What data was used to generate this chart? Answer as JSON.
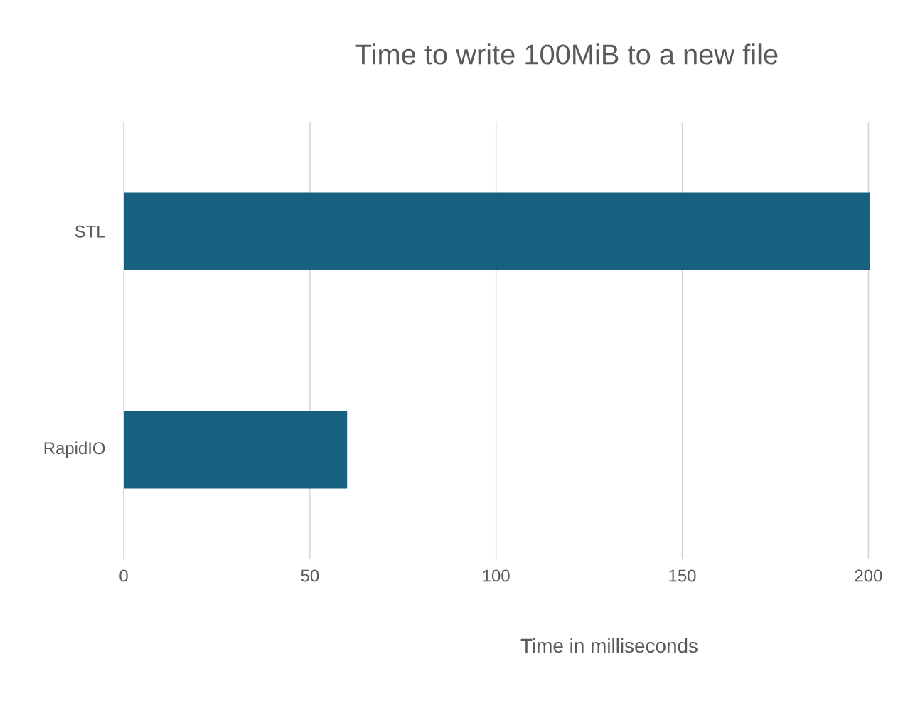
{
  "chart_data": {
    "type": "bar",
    "orientation": "horizontal",
    "title": "Time to write 100MiB to a new file",
    "xlabel": "Time in milliseconds",
    "categories": [
      "STL",
      "RapidIO"
    ],
    "values": [
      200.5,
      60
    ],
    "color": "#17607f",
    "xlim": [
      0,
      200.5
    ],
    "xticks": [
      0,
      50,
      100,
      150,
      200
    ],
    "grid": "x"
  }
}
